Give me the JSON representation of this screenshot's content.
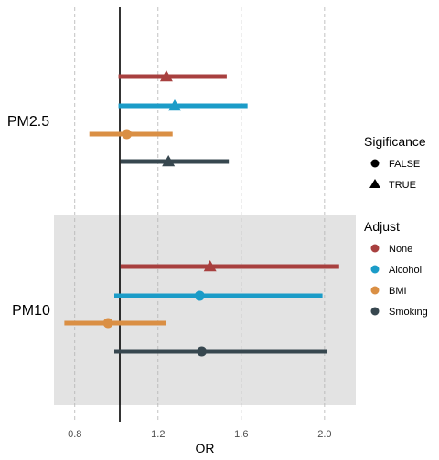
{
  "chart_data": {
    "type": "forest",
    "xlabel": "OR",
    "xlim": [
      0.7,
      2.15
    ],
    "x_ticks": [
      0.8,
      1.2,
      1.6,
      2.0
    ],
    "x_tick_labels": [
      "0.8",
      "1.2",
      "1.6",
      "2.0"
    ],
    "reference_line": 1.0,
    "grid": "vertical dashed",
    "groups": [
      {
        "label": "PM2.5",
        "shaded": false
      },
      {
        "label": "PM10",
        "shaded": true
      }
    ],
    "series": [
      {
        "name": "None",
        "color": "#a8403f"
      },
      {
        "name": "Alcohol",
        "color": "#1b9cc8"
      },
      {
        "name": "BMI",
        "color": "#da8f44"
      },
      {
        "name": "Smoking",
        "color": "#37474f"
      }
    ],
    "points": [
      {
        "group": "PM2.5",
        "series": "None",
        "or": 1.24,
        "lower": 1.01,
        "upper": 1.53,
        "significance": "TRUE"
      },
      {
        "group": "PM2.5",
        "series": "Alcohol",
        "or": 1.28,
        "lower": 1.01,
        "upper": 1.63,
        "significance": "TRUE"
      },
      {
        "group": "PM2.5",
        "series": "BMI",
        "or": 1.05,
        "lower": 0.87,
        "upper": 1.27,
        "significance": "FALSE"
      },
      {
        "group": "PM2.5",
        "series": "Smoking",
        "or": 1.25,
        "lower": 1.02,
        "upper": 1.54,
        "significance": "TRUE"
      },
      {
        "group": "PM10",
        "series": "None",
        "or": 1.45,
        "lower": 1.02,
        "upper": 2.07,
        "significance": "TRUE"
      },
      {
        "group": "PM10",
        "series": "Alcohol",
        "or": 1.4,
        "lower": 0.99,
        "upper": 1.99,
        "significance": "FALSE"
      },
      {
        "group": "PM10",
        "series": "BMI",
        "or": 0.96,
        "lower": 0.75,
        "upper": 1.24,
        "significance": "FALSE"
      },
      {
        "group": "PM10",
        "series": "Smoking",
        "or": 1.41,
        "lower": 0.99,
        "upper": 2.01,
        "significance": "FALSE"
      }
    ],
    "legends": [
      {
        "title": "Sigificance",
        "entries": [
          {
            "label": "FALSE",
            "shape": "circle"
          },
          {
            "label": "TRUE",
            "shape": "triangle"
          }
        ]
      },
      {
        "title": "Adjust",
        "entries": [
          {
            "label": "None",
            "color": "#a8403f"
          },
          {
            "label": "Alcohol",
            "color": "#1b9cc8"
          },
          {
            "label": "BMI",
            "color": "#da8f44"
          },
          {
            "label": "Smoking",
            "color": "#37474f"
          }
        ]
      }
    ],
    "legend_position": "right"
  }
}
